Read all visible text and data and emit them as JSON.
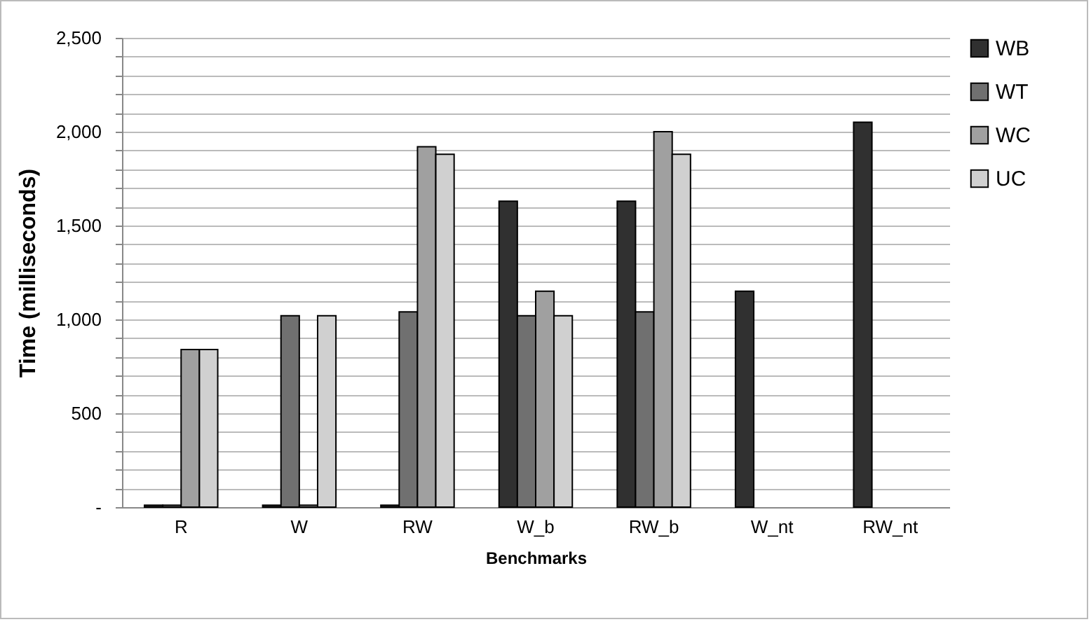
{
  "chart_data": {
    "type": "bar",
    "xlabel": "Benchmarks",
    "ylabel": "Time (milliseconds)",
    "categories": [
      "R",
      "W",
      "RW",
      "W_b",
      "RW_b",
      "W_nt",
      "RW_nt"
    ],
    "series": [
      {
        "name": "WB",
        "color": "#303030",
        "values": [
          10,
          10,
          10,
          1630,
          1630,
          1150,
          2050
        ]
      },
      {
        "name": "WT",
        "color": "#707070",
        "values": [
          10,
          1020,
          1040,
          1020,
          1040,
          null,
          null
        ]
      },
      {
        "name": "WC",
        "color": "#a0a0a0",
        "values": [
          840,
          10,
          1920,
          1150,
          2000,
          null,
          null
        ]
      },
      {
        "name": "UC",
        "color": "#d0d0d0",
        "values": [
          840,
          1020,
          1880,
          1020,
          1880,
          null,
          null
        ]
      }
    ],
    "ylim": [
      0,
      2500
    ],
    "yticks": [
      {
        "value": 0,
        "label": "-"
      },
      {
        "value": 100,
        "label": null
      },
      {
        "value": 200,
        "label": null
      },
      {
        "value": 300,
        "label": null
      },
      {
        "value": 400,
        "label": null
      },
      {
        "value": 500,
        "label": "500"
      },
      {
        "value": 600,
        "label": null
      },
      {
        "value": 700,
        "label": null
      },
      {
        "value": 800,
        "label": null
      },
      {
        "value": 900,
        "label": null
      },
      {
        "value": 1000,
        "label": "1,000"
      },
      {
        "value": 1100,
        "label": null
      },
      {
        "value": 1200,
        "label": null
      },
      {
        "value": 1300,
        "label": null
      },
      {
        "value": 1400,
        "label": null
      },
      {
        "value": 1500,
        "label": "1,500"
      },
      {
        "value": 1600,
        "label": null
      },
      {
        "value": 1700,
        "label": null
      },
      {
        "value": 1800,
        "label": null
      },
      {
        "value": 1900,
        "label": null
      },
      {
        "value": 2000,
        "label": "2,000"
      },
      {
        "value": 2100,
        "label": null
      },
      {
        "value": 2200,
        "label": null
      },
      {
        "value": 2300,
        "label": null
      },
      {
        "value": 2400,
        "label": null
      },
      {
        "value": 2500,
        "label": "2,500"
      }
    ],
    "grid": true,
    "legend": "right"
  }
}
